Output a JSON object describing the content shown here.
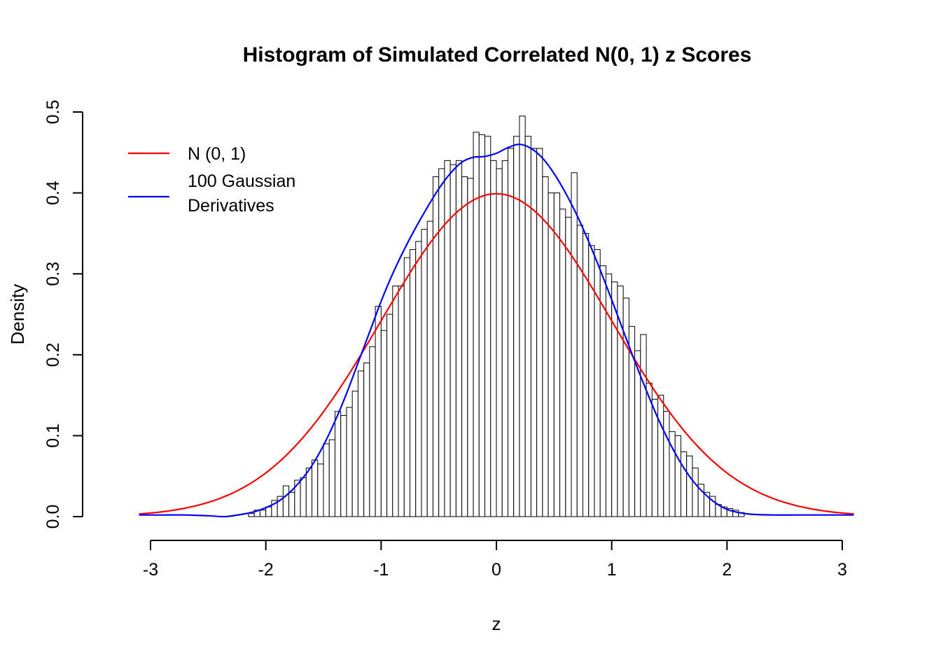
{
  "chart_data": {
    "type": "bar",
    "subtype": "histogram-with-density-curves",
    "title": "Histogram of Simulated Correlated N(0, 1) z Scores",
    "xlabel": "z",
    "ylabel": "Density",
    "xlim": [
      -3,
      3
    ],
    "ylim": [
      0,
      0.5
    ],
    "x_ticks": [
      -3,
      -2,
      -1,
      0,
      1,
      2,
      3
    ],
    "y_ticks": [
      0,
      0.1,
      0.2,
      0.3,
      0.4,
      0.5
    ],
    "y_tick_labels": [
      "0.0",
      "0.1",
      "0.2",
      "0.3",
      "0.4",
      "0.5"
    ],
    "grid": false,
    "background": "#FFFFFF",
    "legend": {
      "position": "top-left",
      "entries": [
        {
          "label": "N (0, 1)",
          "label_lines": [
            "N (0, 1)"
          ],
          "color": "#FF0000"
        },
        {
          "label": "100 Gaussian Derivatives",
          "label_lines": [
            "100 Gaussian",
            "Derivatives"
          ],
          "color": "#0000FF"
        }
      ]
    },
    "histogram": {
      "bin_start": -2.15,
      "bin_width": 0.05,
      "bar_fill": "#FFFFFF",
      "bar_stroke": "#000000",
      "densities": [
        0.004,
        0.008,
        0.008,
        0.012,
        0.02,
        0.025,
        0.038,
        0.03,
        0.045,
        0.048,
        0.06,
        0.07,
        0.065,
        0.09,
        0.095,
        0.13,
        0.125,
        0.135,
        0.155,
        0.18,
        0.19,
        0.21,
        0.26,
        0.23,
        0.25,
        0.285,
        0.285,
        0.32,
        0.33,
        0.34,
        0.355,
        0.365,
        0.42,
        0.43,
        0.44,
        0.435,
        0.44,
        0.42,
        0.418,
        0.475,
        0.472,
        0.47,
        0.44,
        0.43,
        0.44,
        0.455,
        0.47,
        0.495,
        0.47,
        0.455,
        0.455,
        0.42,
        0.4,
        0.4,
        0.38,
        0.37,
        0.425,
        0.36,
        0.35,
        0.335,
        0.33,
        0.31,
        0.3,
        0.29,
        0.285,
        0.27,
        0.235,
        0.205,
        0.225,
        0.165,
        0.145,
        0.15,
        0.13,
        0.105,
        0.1,
        0.08,
        0.075,
        0.06,
        0.04,
        0.03,
        0.025,
        0.015,
        0.012,
        0.01,
        0.008,
        0.005
      ]
    },
    "series": [
      {
        "name": "N (0, 1)",
        "type": "normal_pdf",
        "mean": 0,
        "sd": 1,
        "x_range": [
          -3.1,
          3.1
        ],
        "color": "#FF0000"
      },
      {
        "name": "100 Gaussian Derivatives",
        "type": "kde",
        "color": "#0000FF",
        "x": [
          -3.1,
          -2.9,
          -2.7,
          -2.5,
          -2.35,
          -2.2,
          -2.1,
          -2.0,
          -1.9,
          -1.8,
          -1.7,
          -1.6,
          -1.5,
          -1.4,
          -1.3,
          -1.2,
          -1.1,
          -1.0,
          -0.9,
          -0.8,
          -0.7,
          -0.6,
          -0.5,
          -0.4,
          -0.3,
          -0.2,
          -0.1,
          0.0,
          0.1,
          0.2,
          0.3,
          0.4,
          0.5,
          0.6,
          0.7,
          0.8,
          0.9,
          1.0,
          1.1,
          1.2,
          1.3,
          1.4,
          1.5,
          1.6,
          1.7,
          1.8,
          1.9,
          2.0,
          2.1,
          2.2,
          2.4,
          2.6,
          2.8,
          3.0,
          3.1
        ],
        "y": [
          0.002,
          0.002,
          0.002,
          0.001,
          0.0,
          0.003,
          0.006,
          0.011,
          0.018,
          0.029,
          0.044,
          0.063,
          0.088,
          0.118,
          0.152,
          0.19,
          0.228,
          0.266,
          0.3,
          0.33,
          0.357,
          0.382,
          0.405,
          0.424,
          0.438,
          0.444,
          0.445,
          0.449,
          0.456,
          0.46,
          0.455,
          0.443,
          0.424,
          0.4,
          0.372,
          0.34,
          0.305,
          0.268,
          0.23,
          0.192,
          0.156,
          0.122,
          0.092,
          0.066,
          0.045,
          0.029,
          0.017,
          0.009,
          0.005,
          0.003,
          0.002,
          0.002,
          0.002,
          0.002,
          0.002
        ]
      }
    ]
  }
}
